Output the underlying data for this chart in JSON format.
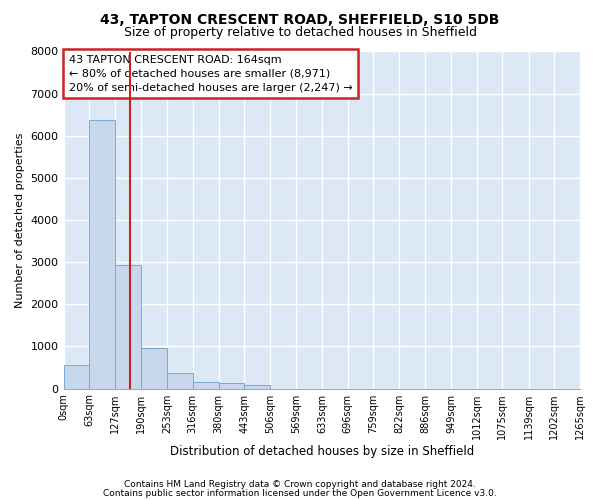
{
  "title": "43, TAPTON CRESCENT ROAD, SHEFFIELD, S10 5DB",
  "subtitle": "Size of property relative to detached houses in Sheffield",
  "xlabel": "Distribution of detached houses by size in Sheffield",
  "ylabel": "Number of detached properties",
  "bar_color": "#c8d8ec",
  "bar_edge_color": "#7aaad0",
  "background_color": "#dce8f5",
  "grid_color": "#ffffff",
  "vline_x": 164,
  "vline_color": "#cc2222",
  "annotation_box_color": "#cc2222",
  "annotation_lines": [
    "43 TAPTON CRESCENT ROAD: 164sqm",
    "← 80% of detached houses are smaller (8,971)",
    "20% of semi-detached houses are larger (2,247) →"
  ],
  "bin_edges": [
    0,
    63,
    127,
    190,
    253,
    316,
    380,
    443,
    506,
    569,
    633,
    696,
    759,
    822,
    886,
    949,
    1012,
    1075,
    1139,
    1202,
    1265
  ],
  "bin_counts": [
    560,
    6380,
    2930,
    975,
    370,
    160,
    130,
    95,
    0,
    0,
    0,
    0,
    0,
    0,
    0,
    0,
    0,
    0,
    0,
    0
  ],
  "ylim": [
    0,
    8000
  ],
  "yticks": [
    0,
    1000,
    2000,
    3000,
    4000,
    5000,
    6000,
    7000,
    8000
  ],
  "xtick_labels": [
    "0sqm",
    "63sqm",
    "127sqm",
    "190sqm",
    "253sqm",
    "316sqm",
    "380sqm",
    "443sqm",
    "506sqm",
    "569sqm",
    "633sqm",
    "696sqm",
    "759sqm",
    "822sqm",
    "886sqm",
    "949sqm",
    "1012sqm",
    "1075sqm",
    "1139sqm",
    "1202sqm",
    "1265sqm"
  ],
  "footnote1": "Contains HM Land Registry data © Crown copyright and database right 2024.",
  "footnote2": "Contains public sector information licensed under the Open Government Licence v3.0.",
  "fig_facecolor": "#ffffff",
  "title_fontsize": 10,
  "subtitle_fontsize": 9
}
